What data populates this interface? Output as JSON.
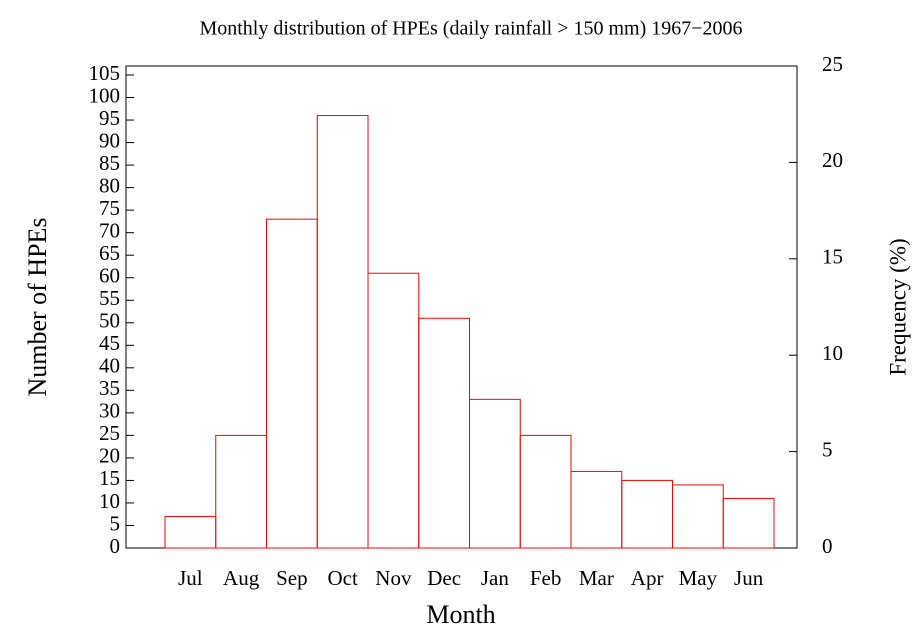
{
  "chart_data": {
    "type": "bar",
    "title": "Monthly distribution of HPEs (daily rainfall > 150 mm) 1967−2006",
    "x_label": "Month",
    "y_label": "Number of HPEs",
    "y2_label": "Frequency (%)",
    "categories": [
      "Jul",
      "Aug",
      "Sep",
      "Oct",
      "Nov",
      "Dec",
      "Jan",
      "Feb",
      "Mar",
      "Apr",
      "May",
      "Jun"
    ],
    "values": [
      7,
      25,
      73,
      96,
      61,
      51,
      33,
      25,
      17,
      15,
      14,
      11
    ],
    "color": "#ff0000",
    "ylim": [
      0,
      107
    ],
    "yticks": [
      0,
      5,
      10,
      15,
      20,
      25,
      30,
      35,
      40,
      45,
      50,
      55,
      60,
      65,
      70,
      75,
      80,
      85,
      90,
      95,
      100,
      105
    ],
    "y2lim": [
      0,
      25
    ],
    "y2ticks": [
      0,
      5,
      10,
      15,
      20,
      25
    ]
  }
}
